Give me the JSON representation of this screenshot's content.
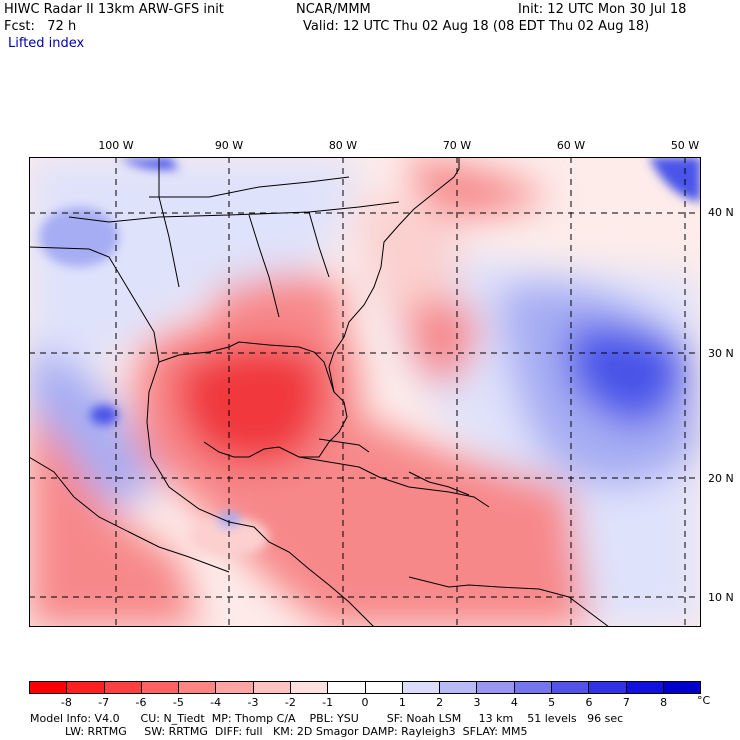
{
  "header": {
    "title_left": "HIWC Radar II 13km ARW-GFS init",
    "source": "NCAR/MMM",
    "init": "Init: 12 UTC Mon 30 Jul 18",
    "fcst": "Fcst:   72 h",
    "valid": "Valid: 12 UTC Thu 02 Aug 18 (08 EDT Thu 02 Aug 18)",
    "field": "Lifted index"
  },
  "map": {
    "lon_labels": [
      "100 W",
      "90 W",
      "80 W",
      "70 W",
      "60 W",
      "50 W"
    ],
    "lat_labels": [
      "40 N",
      "30 N",
      "20 N",
      "10 N"
    ],
    "colors": {
      "strong_neg": "#f0393c",
      "neg": "#f7888a",
      "weak_neg": "#fbd0cf",
      "neutral": "#fdecea",
      "weak_pos": "#dfe2fb",
      "pos": "#a7adf3",
      "strong_pos": "#4a55e9",
      "coast": "#000000"
    }
  },
  "colorbar": {
    "unit": "°C",
    "ticks": [
      "-8",
      "-7",
      "-6",
      "-5",
      "-4",
      "-3",
      "-2",
      "-1",
      "0",
      "1",
      "2",
      "3",
      "4",
      "5",
      "6",
      "7",
      "8"
    ],
    "colors": [
      "#ff0000",
      "#ff2020",
      "#ff4040",
      "#ff6262",
      "#ff8585",
      "#ffa3a3",
      "#ffc2c2",
      "#ffe0e0",
      "#ffffff",
      "#ffffff",
      "#dcdcfb",
      "#b9b9f7",
      "#9797f2",
      "#7575ee",
      "#5353ea",
      "#3131e5",
      "#1010e1",
      "#0000cc"
    ]
  },
  "footer": {
    "line1": "Model Info: V4.0      CU: N_Tiedt  MP: Thomp C/A    PBL: YSU        SF: Noah LSM     13 km    51 levels   96 sec",
    "line2": "          LW: RRTMG     SW: RRTMG  DIFF: full   KM: 2D Smagor DAMP: Rayleigh3  SFLAY: MM5"
  }
}
